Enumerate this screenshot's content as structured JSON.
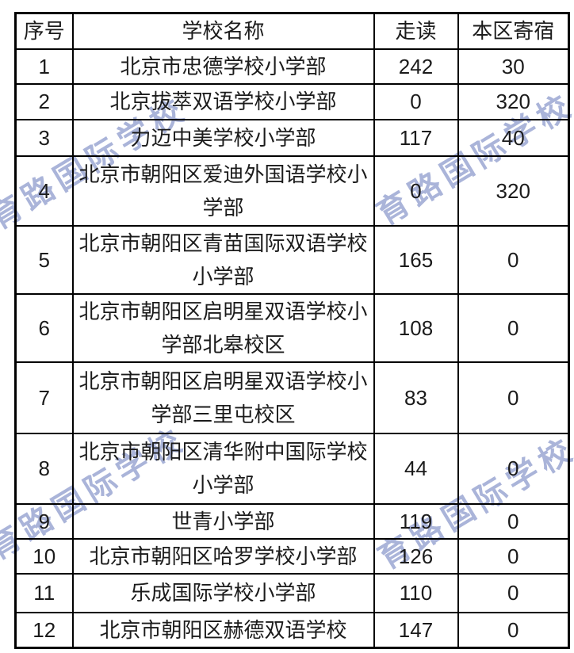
{
  "watermark": {
    "text": "育路国际学校",
    "color": "#aab4d9"
  },
  "table": {
    "headers": {
      "no": "序号",
      "name": "学校名称",
      "day": "走读",
      "boarding": "本区寄宿"
    },
    "rows": [
      {
        "no": "1",
        "name": "北京市忠德学校小学部",
        "day": "242",
        "boarding": "30"
      },
      {
        "no": "2",
        "name": "北京拔萃双语学校小学部",
        "day": "0",
        "boarding": "320"
      },
      {
        "no": "3",
        "name": "力迈中美学校小学部",
        "day": "117",
        "boarding": "40"
      },
      {
        "no": "4",
        "name": "北京市朝阳区爱迪外国语学校小学部",
        "day": "0",
        "boarding": "320"
      },
      {
        "no": "5",
        "name": "北京市朝阳区青苗国际双语学校小学部",
        "day": "165",
        "boarding": "0"
      },
      {
        "no": "6",
        "name": "北京市朝阳区启明星双语学校小学部北皋校区",
        "day": "108",
        "boarding": "0"
      },
      {
        "no": "7",
        "name": "北京市朝阳区启明星双语学校小学部三里屯校区",
        "day": "83",
        "boarding": "0"
      },
      {
        "no": "8",
        "name": "北京市朝阳区清华附中国际学校小学部",
        "day": "44",
        "boarding": "0"
      },
      {
        "no": "9",
        "name": "世青小学部",
        "day": "119",
        "boarding": "0"
      },
      {
        "no": "10",
        "name": "北京市朝阳区哈罗学校小学部",
        "day": "126",
        "boarding": "0"
      },
      {
        "no": "11",
        "name": "乐成国际学校小学部",
        "day": "110",
        "boarding": "0"
      },
      {
        "no": "12",
        "name": "北京市朝阳区赫德双语学校",
        "day": "147",
        "boarding": "0"
      }
    ]
  }
}
